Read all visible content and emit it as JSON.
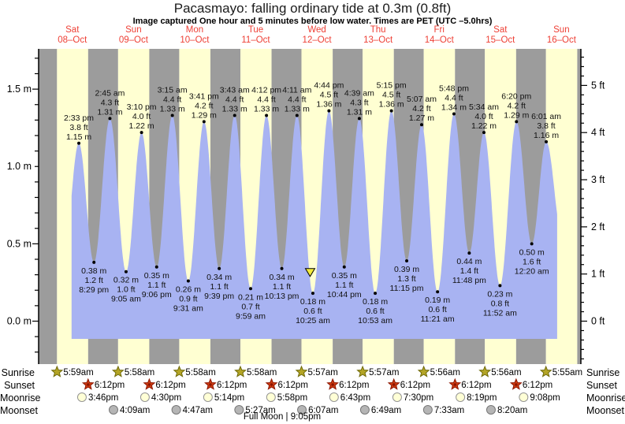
{
  "title": "Pacasmayo: falling  ordinary tide at 0.3m (0.8ft)",
  "subtitle": "Image captured One hour and 5 minutes before low water. Times are PET (UTC –5.0hrs)",
  "days": [
    {
      "name": "Sat",
      "date": "08–Oct"
    },
    {
      "name": "Sun",
      "date": "09–Oct"
    },
    {
      "name": "Mon",
      "date": "10–Oct"
    },
    {
      "name": "Tue",
      "date": "11–Oct"
    },
    {
      "name": "Wed",
      "date": "12–Oct"
    },
    {
      "name": "Thu",
      "date": "13–Oct"
    },
    {
      "name": "Fri",
      "date": "14–Oct"
    },
    {
      "name": "Sat",
      "date": "15–Oct"
    },
    {
      "name": "Sun",
      "date": "16–Oct"
    }
  ],
  "axes": {
    "left_ticks": [
      {
        "m": 0.0,
        "label": "0.0 m"
      },
      {
        "m": 0.5,
        "label": "0.5 m"
      },
      {
        "m": 1.0,
        "label": "1.0 m"
      },
      {
        "m": 1.5,
        "label": "1.5 m"
      }
    ],
    "right_ticks": [
      {
        "ft": 0,
        "label": "0 ft"
      },
      {
        "ft": 1,
        "label": "1 ft"
      },
      {
        "ft": 2,
        "label": "2 ft"
      },
      {
        "ft": 3,
        "label": "3 ft"
      },
      {
        "ft": 4,
        "label": "4 ft"
      },
      {
        "ft": 5,
        "label": "5 ft"
      }
    ]
  },
  "chart_data": {
    "type": "area",
    "title": "Pacasmayo tide height",
    "x_range": "Sat 08-Oct 00:00 to Sun 16-Oct (times PET, UTC -5.0hrs)",
    "ylim_m": [
      -0.28,
      1.76
    ],
    "tide_events": [
      {
        "day": 0,
        "kind": "high",
        "time": "2:33 pm",
        "height_m": 1.15,
        "height_ft": 3.8
      },
      {
        "day": 0,
        "kind": "low",
        "time": "8:29 pm",
        "height_m": 0.38,
        "height_ft": 1.2
      },
      {
        "day": 1,
        "kind": "high",
        "time": "2:45 am",
        "height_m": 1.31,
        "height_ft": 4.3
      },
      {
        "day": 1,
        "kind": "low",
        "time": "9:05 am",
        "height_m": 0.32,
        "height_ft": 1.0
      },
      {
        "day": 1,
        "kind": "high",
        "time": "3:10 pm",
        "height_m": 1.22,
        "height_ft": 4.0
      },
      {
        "day": 1,
        "kind": "low",
        "time": "9:06 pm",
        "height_m": 0.35,
        "height_ft": 1.1
      },
      {
        "day": 2,
        "kind": "high",
        "time": "3:15 am",
        "height_m": 1.33,
        "height_ft": 4.4
      },
      {
        "day": 2,
        "kind": "low",
        "time": "9:31 am",
        "height_m": 0.26,
        "height_ft": 0.9
      },
      {
        "day": 2,
        "kind": "high",
        "time": "3:41 pm",
        "height_m": 1.29,
        "height_ft": 4.2
      },
      {
        "day": 2,
        "kind": "low",
        "time": "9:39 pm",
        "height_m": 0.34,
        "height_ft": 1.1
      },
      {
        "day": 3,
        "kind": "high",
        "time": "3:43 am",
        "height_m": 1.33,
        "height_ft": 4.4
      },
      {
        "day": 3,
        "kind": "low",
        "time": "9:59 am",
        "height_m": 0.21,
        "height_ft": 0.7
      },
      {
        "day": 3,
        "kind": "high",
        "time": "4:12 pm",
        "height_m": 1.33,
        "height_ft": 4.4
      },
      {
        "day": 3,
        "kind": "low",
        "time": "10:13 pm",
        "height_m": 0.34,
        "height_ft": 1.1
      },
      {
        "day": 4,
        "kind": "high",
        "time": "4:11 am",
        "height_m": 1.33,
        "height_ft": 4.4
      },
      {
        "day": 4,
        "kind": "low",
        "time": "10:25 am",
        "height_m": 0.18,
        "height_ft": 0.6
      },
      {
        "day": 4,
        "kind": "high",
        "time": "4:44 pm",
        "height_m": 1.36,
        "height_ft": 4.5
      },
      {
        "day": 4,
        "kind": "low",
        "time": "10:44 pm",
        "height_m": 0.35,
        "height_ft": 1.1
      },
      {
        "day": 5,
        "kind": "high",
        "time": "4:39 am",
        "height_m": 1.31,
        "height_ft": 4.3
      },
      {
        "day": 5,
        "kind": "low",
        "time": "10:53 am",
        "height_m": 0.18,
        "height_ft": 0.6
      },
      {
        "day": 5,
        "kind": "high",
        "time": "5:15 pm",
        "height_m": 1.36,
        "height_ft": 4.5
      },
      {
        "day": 5,
        "kind": "low",
        "time": "11:15 pm",
        "height_m": 0.39,
        "height_ft": 1.3
      },
      {
        "day": 6,
        "kind": "high",
        "time": "5:07 am",
        "height_m": 1.27,
        "height_ft": 4.2
      },
      {
        "day": 6,
        "kind": "low",
        "time": "11:21 am",
        "height_m": 0.19,
        "height_ft": 0.6
      },
      {
        "day": 6,
        "kind": "high",
        "time": "5:48 pm",
        "height_m": 1.34,
        "height_ft": 4.4
      },
      {
        "day": 6,
        "kind": "low",
        "time": "11:48 pm",
        "height_m": 0.44,
        "height_ft": 1.4
      },
      {
        "day": 7,
        "kind": "high",
        "time": "5:34 am",
        "height_m": 1.22,
        "height_ft": 4.0
      },
      {
        "day": 7,
        "kind": "low",
        "time": "11:52 am",
        "height_m": 0.23,
        "height_ft": 0.8
      },
      {
        "day": 7,
        "kind": "high",
        "time": "6:20 pm",
        "height_m": 1.29,
        "height_ft": 4.2
      },
      {
        "day": 8,
        "kind": "low",
        "time": "12:20 am",
        "height_m": 0.5,
        "height_ft": 1.6
      },
      {
        "day": 8,
        "kind": "high",
        "time": "6:01 am",
        "height_m": 1.16,
        "height_ft": 3.8
      }
    ],
    "current_marker": {
      "day": 4,
      "time": "9:20 am",
      "symbol": "yellow-triangle"
    }
  },
  "sun_moon": {
    "row_labels": {
      "sunrise": "Sunrise",
      "sunset": "Sunset",
      "moonrise": "Moonrise",
      "moonset": "Moonset"
    },
    "sunrise": [
      {
        "day": 0,
        "time": "5:59am"
      },
      {
        "day": 1,
        "time": "5:58am"
      },
      {
        "day": 2,
        "time": "5:58am"
      },
      {
        "day": 3,
        "time": "5:58am"
      },
      {
        "day": 4,
        "time": "5:57am"
      },
      {
        "day": 5,
        "time": "5:57am"
      },
      {
        "day": 6,
        "time": "5:56am"
      },
      {
        "day": 7,
        "time": "5:56am"
      },
      {
        "day": 8,
        "time": "5:55am"
      }
    ],
    "sunset": [
      {
        "day": 0,
        "time": "6:12pm"
      },
      {
        "day": 1,
        "time": "6:12pm"
      },
      {
        "day": 2,
        "time": "6:12pm"
      },
      {
        "day": 3,
        "time": "6:12pm"
      },
      {
        "day": 4,
        "time": "6:12pm"
      },
      {
        "day": 5,
        "time": "6:12pm"
      },
      {
        "day": 6,
        "time": "6:12pm"
      },
      {
        "day": 7,
        "time": "6:12pm"
      }
    ],
    "moonrise": [
      {
        "day": 0,
        "time": "3:46pm"
      },
      {
        "day": 1,
        "time": "4:30pm"
      },
      {
        "day": 2,
        "time": "5:14pm"
      },
      {
        "day": 3,
        "time": "5:58pm"
      },
      {
        "day": 4,
        "time": "6:43pm"
      },
      {
        "day": 5,
        "time": "7:30pm"
      },
      {
        "day": 6,
        "time": "8:19pm"
      },
      {
        "day": 7,
        "time": "9:08pm"
      }
    ],
    "moonset": [
      {
        "day": 1,
        "time": "4:09am"
      },
      {
        "day": 2,
        "time": "4:47am"
      },
      {
        "day": 3,
        "time": "5:27am"
      },
      {
        "day": 4,
        "time": "6:07am"
      },
      {
        "day": 5,
        "time": "6:49am"
      },
      {
        "day": 6,
        "time": "7:33am"
      },
      {
        "day": 7,
        "time": "8:20am"
      }
    ],
    "full_moon": "Full Moon | 9:05pm"
  },
  "colors": {
    "night_band": "#9c9c9c",
    "day_band": "#ffffd2",
    "tide_fill": "#a8b3f2",
    "day_label": "#ee4036",
    "annotation": "#111111",
    "axis": "#000000",
    "sunrise_star": "#b4a526",
    "sunrise_star_stroke": "#6f6a0a",
    "sunset_star": "#d03d12",
    "sunset_star_stroke": "#8c1500",
    "moonrise_fill": "#ffffd6",
    "moonrise_stroke": "#949494",
    "moonset_fill": "#b5b5b5",
    "moonset_stroke": "#787878",
    "marker_triangle": "#f2ea3c"
  }
}
